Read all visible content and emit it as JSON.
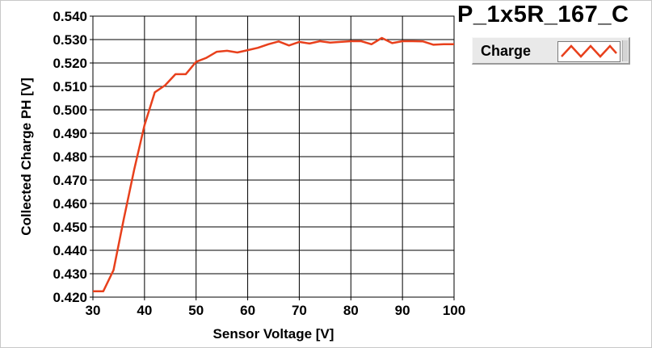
{
  "chart_data": {
    "type": "line",
    "title": "P_1x5R_167_C",
    "xlabel": "Sensor Voltage [V]",
    "ylabel": "Collected Charge PH [V]",
    "xlim": [
      30,
      100
    ],
    "ylim": [
      0.42,
      0.54
    ],
    "xticks": [
      30,
      40,
      50,
      60,
      70,
      80,
      90,
      100
    ],
    "yticks": [
      "0.420",
      "0.430",
      "0.440",
      "0.450",
      "0.460",
      "0.470",
      "0.480",
      "0.490",
      "0.500",
      "0.510",
      "0.520",
      "0.530",
      "0.540"
    ],
    "grid": true,
    "legend_position": "top-right",
    "series": [
      {
        "name": "Charge",
        "color": "#e8401c",
        "x": [
          30,
          32,
          34,
          36,
          38,
          40,
          42,
          44,
          46,
          48,
          50,
          52,
          54,
          56,
          58,
          60,
          62,
          64,
          66,
          68,
          70,
          72,
          74,
          76,
          78,
          80,
          82,
          84,
          86,
          88,
          90,
          92,
          94,
          96,
          98,
          100
        ],
        "y": [
          0.4225,
          0.4225,
          0.4315,
          0.4535,
          0.4745,
          0.4935,
          0.5075,
          0.5105,
          0.5152,
          0.5152,
          0.5205,
          0.5222,
          0.5248,
          0.5252,
          0.5245,
          0.5255,
          0.5265,
          0.528,
          0.5292,
          0.5275,
          0.529,
          0.5283,
          0.5293,
          0.5287,
          0.529,
          0.5293,
          0.5293,
          0.528,
          0.5307,
          0.5285,
          0.5293,
          0.5293,
          0.5292,
          0.5278,
          0.528,
          0.528
        ]
      }
    ]
  },
  "legend": {
    "label": "Charge"
  }
}
